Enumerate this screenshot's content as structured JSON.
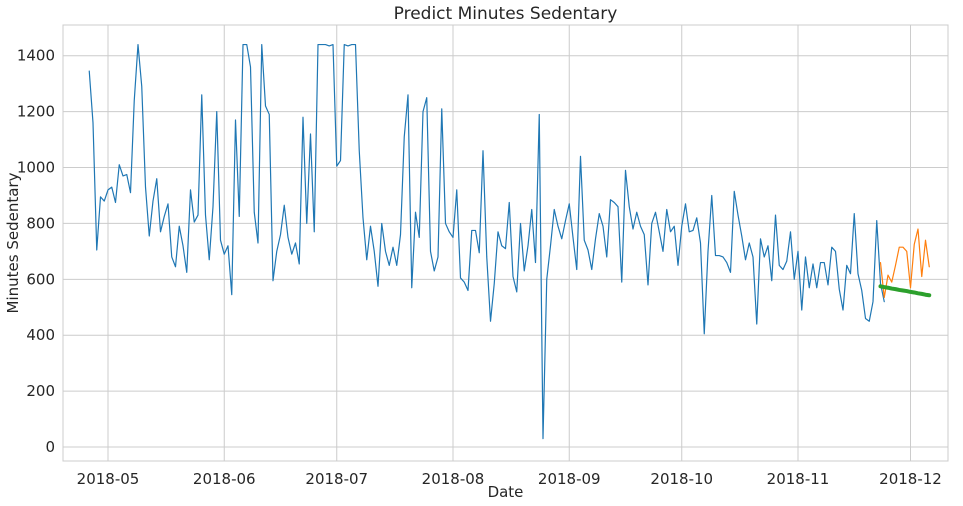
{
  "chart_data": {
    "type": "line",
    "title": "Predict Minutes Sedentary",
    "xlabel": "Date",
    "ylabel": "Minutes Sedentary",
    "xlim": [
      "2018-04-19",
      "2018-12-11"
    ],
    "ylim": [
      -50,
      1510
    ],
    "grid": true,
    "legend": "none",
    "x_ticks": [
      "2018-05-01",
      "2018-06-01",
      "2018-07-01",
      "2018-08-01",
      "2018-09-01",
      "2018-10-01",
      "2018-11-01",
      "2018-12-01"
    ],
    "x_tick_labels": [
      "2018-05",
      "2018-06",
      "2018-07",
      "2018-08",
      "2018-09",
      "2018-10",
      "2018-11",
      "2018-12"
    ],
    "y_ticks": [
      0,
      200,
      400,
      600,
      800,
      1000,
      1200,
      1400
    ],
    "y_tick_labels": [
      "0",
      "200",
      "400",
      "600",
      "800",
      "1000",
      "1200",
      "1400"
    ],
    "series": [
      {
        "color": "#1f77b4",
        "stroke_width": 1.2,
        "start": "2018-04-26",
        "values": [
          1345,
          1160,
          705,
          895,
          880,
          920,
          930,
          875,
          1010,
          970,
          975,
          910,
          1240,
          1440,
          1290,
          930,
          755,
          880,
          960,
          770,
          825,
          870,
          680,
          645,
          790,
          720,
          625,
          920,
          805,
          830,
          1260,
          830,
          670,
          860,
          1200,
          740,
          690,
          720,
          545,
          1170,
          825,
          1440,
          1440,
          1360,
          840,
          730,
          1440,
          1220,
          1190,
          595,
          700,
          760,
          865,
          750,
          690,
          730,
          655,
          1180,
          800,
          1120,
          770,
          1440,
          1440,
          1440,
          1435,
          1440,
          1005,
          1025,
          1440,
          1435,
          1440,
          1440,
          1060,
          820,
          670,
          790,
          700,
          575,
          800,
          700,
          650,
          715,
          650,
          760,
          1110,
          1260,
          570,
          840,
          750,
          1200,
          1250,
          700,
          630,
          680,
          1210,
          800,
          770,
          750,
          920,
          605,
          590,
          560,
          775,
          775,
          695,
          1060,
          680,
          450,
          585,
          770,
          720,
          710,
          875,
          610,
          555,
          800,
          630,
          720,
          850,
          660,
          1190,
          30,
          600,
          720,
          850,
          790,
          745,
          810,
          870,
          750,
          635,
          1040,
          740,
          705,
          635,
          745,
          835,
          790,
          680,
          885,
          875,
          860,
          590,
          990,
          860,
          780,
          840,
          790,
          760,
          580,
          800,
          840,
          770,
          700,
          850,
          770,
          790,
          650,
          790,
          870,
          770,
          775,
          820,
          730,
          405,
          700,
          900,
          685,
          685,
          680,
          660,
          625,
          915,
          830,
          755,
          670,
          730,
          680,
          440,
          745,
          680,
          720,
          595,
          830,
          650,
          635,
          665,
          770,
          600,
          700,
          490,
          680,
          570,
          655,
          570,
          660,
          660,
          580,
          715,
          700,
          565,
          490,
          650,
          620,
          835,
          620,
          560,
          460,
          450,
          520,
          810,
          585,
          520
        ]
      },
      {
        "color": "#ff7f0e",
        "stroke_width": 1.2,
        "start": "2018-11-23",
        "values": [
          660,
          535,
          615,
          590,
          650,
          715,
          715,
          700,
          570,
          725,
          780,
          610,
          740,
          645
        ]
      },
      {
        "color": "#2ca02c",
        "stroke_width": 4,
        "start": "2018-11-23",
        "values": [
          575,
          572,
          570,
          567,
          565,
          562,
          560,
          558,
          555,
          553,
          550,
          548,
          545,
          543
        ]
      }
    ]
  }
}
